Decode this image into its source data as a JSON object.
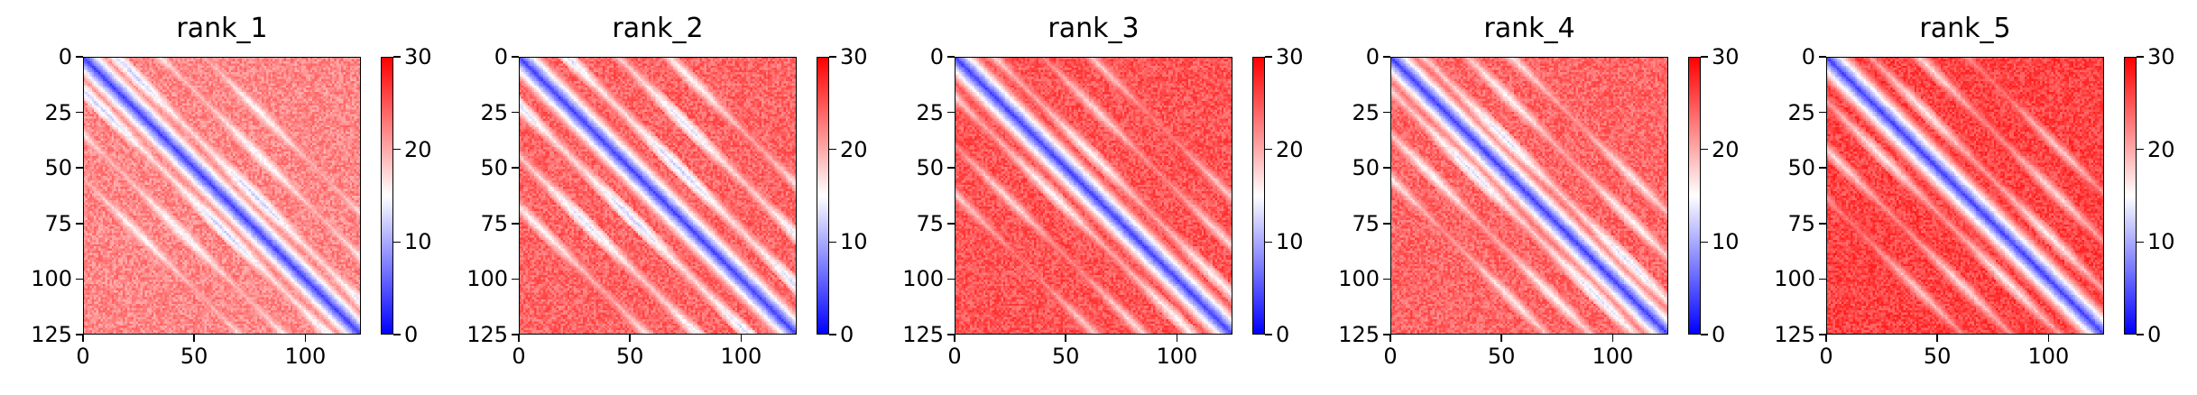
{
  "chart_data": [
    {
      "type": "heatmap",
      "title": "rank_1",
      "xlim": [
        0,
        125
      ],
      "ylim": [
        125,
        0
      ],
      "xticks": [
        "0",
        "50",
        "100"
      ],
      "yticks": [
        "0",
        "25",
        "50",
        "75",
        "100",
        "125"
      ],
      "colorbar": {
        "cmap": "bwr",
        "range": [
          0,
          30
        ],
        "ticks": [
          "0",
          "10",
          "20",
          "30"
        ]
      },
      "diagonal_value": 3,
      "band_offsets": [
        15,
        35,
        55
      ],
      "band_values": [
        11,
        13,
        14
      ],
      "background": 22
    },
    {
      "type": "heatmap",
      "title": "rank_2",
      "xlim": [
        0,
        125
      ],
      "ylim": [
        125,
        0
      ],
      "xticks": [
        "0",
        "50",
        "100"
      ],
      "yticks": [
        "0",
        "25",
        "50",
        "75",
        "100",
        "125"
      ],
      "colorbar": {
        "cmap": "bwr",
        "range": [
          0,
          30
        ],
        "ticks": [
          "0",
          "10",
          "20",
          "30"
        ]
      },
      "diagonal_value": 3,
      "band_offsets": [
        22,
        45,
        68
      ],
      "band_values": [
        11,
        12,
        14
      ],
      "background": 24
    },
    {
      "type": "heatmap",
      "title": "rank_3",
      "xlim": [
        0,
        125
      ],
      "ylim": [
        125,
        0
      ],
      "xticks": [
        "0",
        "50",
        "100"
      ],
      "yticks": [
        "0",
        "25",
        "50",
        "75",
        "100",
        "125"
      ],
      "colorbar": {
        "cmap": "bwr",
        "range": [
          0,
          30
        ],
        "ticks": [
          "0",
          "10",
          "20",
          "30"
        ]
      },
      "diagonal_value": 3,
      "band_offsets": [
        18,
        40,
        62
      ],
      "band_values": [
        14,
        16,
        17
      ],
      "background": 25
    },
    {
      "type": "heatmap",
      "title": "rank_4",
      "xlim": [
        0,
        125
      ],
      "ylim": [
        125,
        0
      ],
      "xticks": [
        "0",
        "50",
        "100"
      ],
      "yticks": [
        "0",
        "25",
        "50",
        "75",
        "100",
        "125"
      ],
      "colorbar": {
        "cmap": "bwr",
        "range": [
          0,
          30
        ],
        "ticks": [
          "0",
          "10",
          "20",
          "30"
        ]
      },
      "diagonal_value": 3,
      "band_offsets": [
        15,
        35,
        55
      ],
      "band_values": [
        12,
        14,
        15
      ],
      "background": 24
    },
    {
      "type": "heatmap",
      "title": "rank_5",
      "xlim": [
        0,
        125
      ],
      "ylim": [
        125,
        0
      ],
      "xticks": [
        "0",
        "50",
        "100"
      ],
      "yticks": [
        "0",
        "25",
        "50",
        "75",
        "100",
        "125"
      ],
      "colorbar": {
        "cmap": "bwr",
        "range": [
          0,
          30
        ],
        "ticks": [
          "0",
          "10",
          "20",
          "30"
        ]
      },
      "diagonal_value": 3,
      "band_offsets": [
        20,
        42,
        64
      ],
      "band_values": [
        15,
        16,
        17
      ],
      "background": 26
    }
  ]
}
